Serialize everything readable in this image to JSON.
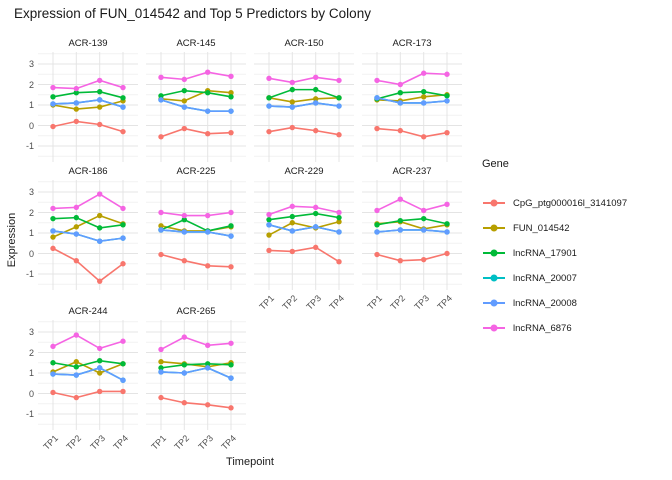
{
  "title": "Expression of FUN_014542 and Top 5 Predictors by Colony",
  "axes": {
    "x_label": "Timepoint",
    "y_label": "Expression"
  },
  "legend": {
    "title": "Gene"
  },
  "chart_data": {
    "type": "line",
    "facet_by": "Colony",
    "legend_position": "right",
    "grid": true,
    "x": [
      "TP1",
      "TP2",
      "TP3",
      "TP4"
    ],
    "yticks": [
      3,
      2,
      1,
      0,
      -1
    ],
    "ylim": [
      -1.5,
      3.5
    ],
    "genes": [
      {
        "name": "CpG_ptg000016l_3141097",
        "color": "#F8766D"
      },
      {
        "name": "FUN_014542",
        "color": "#B79F00"
      },
      {
        "name": "lncRNA_17901",
        "color": "#00BA38"
      },
      {
        "name": "lncRNA_20007",
        "color": "#00BFC4"
      },
      {
        "name": "lncRNA_20008",
        "color": "#619CFF"
      },
      {
        "name": "lncRNA_6876",
        "color": "#F564E3"
      }
    ],
    "facets": [
      {
        "colony": "ACR-139",
        "values": [
          [
            -0.05,
            0.2,
            0.05,
            -0.3
          ],
          [
            1.0,
            0.8,
            0.9,
            1.2
          ],
          [
            1.4,
            1.6,
            1.65,
            1.35
          ],
          [
            1.05,
            1.1,
            1.25,
            0.9
          ],
          [
            1.05,
            1.1,
            1.25,
            0.9
          ],
          [
            1.85,
            1.8,
            2.2,
            1.85
          ]
        ]
      },
      {
        "colony": "ACR-145",
        "values": [
          [
            -0.55,
            -0.15,
            -0.4,
            -0.35
          ],
          [
            1.3,
            1.2,
            1.7,
            1.6
          ],
          [
            1.45,
            1.7,
            1.6,
            1.4
          ],
          [
            1.25,
            0.9,
            0.7,
            0.7
          ],
          [
            1.25,
            0.9,
            0.7,
            0.7
          ],
          [
            2.35,
            2.25,
            2.6,
            2.4
          ]
        ]
      },
      {
        "colony": "ACR-150",
        "values": [
          [
            -0.3,
            -0.1,
            -0.25,
            -0.45
          ],
          [
            1.35,
            1.15,
            1.3,
            1.35
          ],
          [
            1.35,
            1.75,
            1.75,
            1.35
          ],
          [
            0.95,
            0.9,
            1.1,
            0.95
          ],
          [
            0.95,
            0.9,
            1.1,
            0.95
          ],
          [
            2.3,
            2.1,
            2.35,
            2.2
          ]
        ]
      },
      {
        "colony": "ACR-173",
        "values": [
          [
            -0.15,
            -0.25,
            -0.55,
            -0.35
          ],
          [
            1.25,
            1.2,
            1.4,
            1.5
          ],
          [
            1.3,
            1.6,
            1.65,
            1.45
          ],
          [
            1.35,
            1.1,
            1.1,
            1.2
          ],
          [
            1.35,
            1.1,
            1.1,
            1.2
          ],
          [
            2.2,
            2.0,
            2.55,
            2.5
          ]
        ]
      },
      {
        "colony": "ACR-186",
        "values": [
          [
            0.25,
            -0.35,
            -1.35,
            -0.5
          ],
          [
            0.8,
            1.3,
            1.85,
            1.45
          ],
          [
            1.7,
            1.75,
            1.25,
            1.4
          ],
          [
            1.1,
            0.95,
            0.6,
            0.75
          ],
          [
            1.1,
            0.95,
            0.6,
            0.75
          ],
          [
            2.2,
            2.25,
            2.9,
            2.2
          ]
        ]
      },
      {
        "colony": "ACR-225",
        "values": [
          [
            -0.05,
            -0.35,
            -0.6,
            -0.65
          ],
          [
            1.35,
            1.1,
            1.1,
            1.3
          ],
          [
            1.15,
            1.65,
            1.1,
            1.35
          ],
          [
            1.15,
            1.05,
            1.05,
            0.85
          ],
          [
            1.15,
            1.05,
            1.05,
            0.85
          ],
          [
            2.0,
            1.85,
            1.85,
            2.0
          ]
        ]
      },
      {
        "colony": "ACR-229",
        "values": [
          [
            0.15,
            0.1,
            0.3,
            -0.4
          ],
          [
            0.9,
            1.5,
            1.25,
            1.55
          ],
          [
            1.65,
            1.8,
            1.95,
            1.75
          ],
          [
            1.4,
            1.1,
            1.3,
            1.05
          ],
          [
            1.4,
            1.1,
            1.3,
            1.05
          ],
          [
            1.9,
            2.3,
            2.25,
            2.0
          ]
        ]
      },
      {
        "colony": "ACR-237",
        "values": [
          [
            -0.05,
            -0.35,
            -0.3,
            0.0
          ],
          [
            1.45,
            1.55,
            1.2,
            1.4
          ],
          [
            1.4,
            1.6,
            1.7,
            1.45
          ],
          [
            1.05,
            1.15,
            1.15,
            1.05
          ],
          [
            1.05,
            1.15,
            1.15,
            1.05
          ],
          [
            2.1,
            2.65,
            2.1,
            2.4
          ]
        ]
      },
      {
        "colony": "ACR-244",
        "values": [
          [
            0.05,
            -0.2,
            0.1,
            0.1
          ],
          [
            1.05,
            1.55,
            1.0,
            1.45
          ],
          [
            1.5,
            1.3,
            1.6,
            1.45
          ],
          [
            0.95,
            0.9,
            1.25,
            0.65
          ],
          [
            0.95,
            0.9,
            1.25,
            0.65
          ],
          [
            2.3,
            2.85,
            2.2,
            2.55
          ]
        ]
      },
      {
        "colony": "ACR-265",
        "values": [
          [
            -0.2,
            -0.45,
            -0.55,
            -0.7
          ],
          [
            1.55,
            1.45,
            1.3,
            1.5
          ],
          [
            1.25,
            1.4,
            1.45,
            1.4
          ],
          [
            1.05,
            1.0,
            1.25,
            0.75
          ],
          [
            1.05,
            1.0,
            1.25,
            0.75
          ],
          [
            2.15,
            2.75,
            2.35,
            2.45
          ]
        ]
      }
    ]
  }
}
